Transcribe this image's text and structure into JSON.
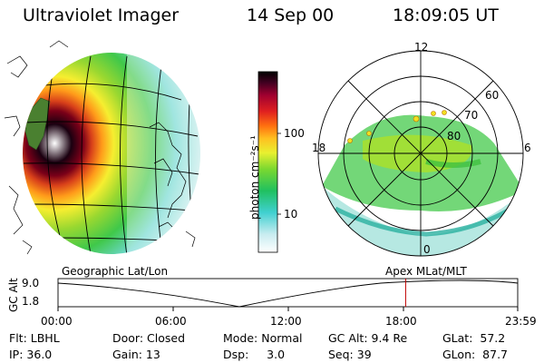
{
  "header": {
    "instrument": "Ultraviolet Imager",
    "date": "14 Sep 00",
    "time": "18:09:05 UT"
  },
  "colorbar": {
    "unit_label": "photon cm⁻²s⁻¹",
    "ticks": [
      "100",
      "10"
    ],
    "scale": "log"
  },
  "polar_plot": {
    "mlt_labels": {
      "top": "12",
      "left": "18",
      "right": "6",
      "bottom": "0"
    },
    "lat_labels": [
      "60",
      "70",
      "80"
    ]
  },
  "panel_labels": {
    "left": "Geographic Lat/Lon",
    "right": "Apex MLat/MLT"
  },
  "orbit_plot": {
    "ylabel": "GC Alt",
    "yticks": [
      "9.0",
      "1.8"
    ],
    "xticks": [
      "00:00",
      "06:00",
      "12:00",
      "18:00",
      "23:59"
    ],
    "current_time_hours": 18.15
  },
  "info": {
    "flt": "Flt: LBHL",
    "ip": "IP: 36.0",
    "door": "Door: Closed",
    "gain": "Gain: 13",
    "mode": "Mode: Normal",
    "dsp": "Dsp:     3.0",
    "gc_alt": "GC Alt: 9.4 Re",
    "seq": "Seq: 39",
    "glat": "GLat:  57.2",
    "glon": "GLon:  87.7"
  }
}
